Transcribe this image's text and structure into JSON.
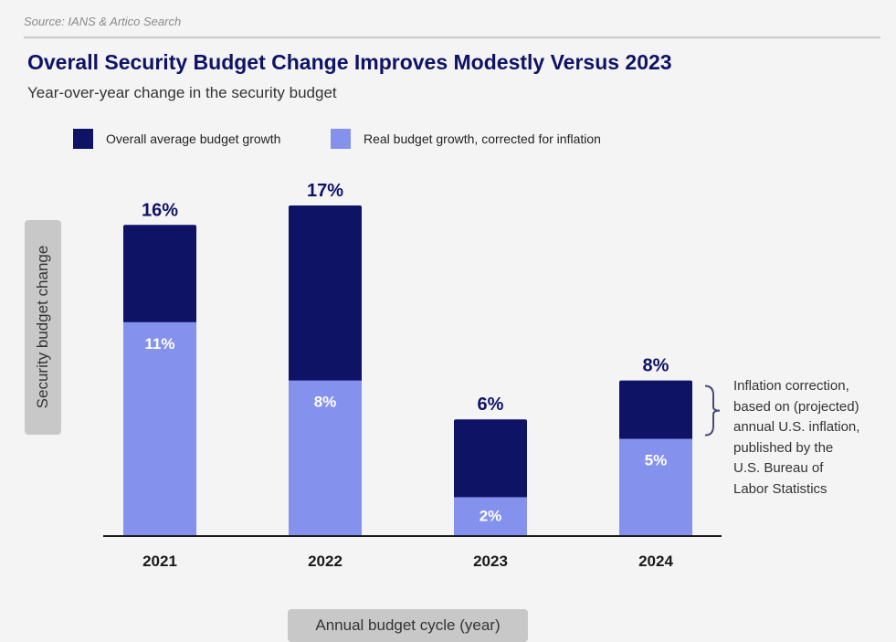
{
  "source": "Source: IANS & Artico Search",
  "colors": {
    "overall": "#0f1366",
    "real": "#8592ed",
    "axis": "#1a1a1a",
    "bracket": "#4a4a7a"
  },
  "chart_data": {
    "type": "bar",
    "title": "Overall Security Budget Change Improves Modestly Versus 2023",
    "subtitle": "Year-over-year change in the security budget",
    "xlabel": "Annual budget cycle (year)",
    "ylabel": "Security budget change",
    "categories": [
      "2021",
      "2022",
      "2023",
      "2024"
    ],
    "series": [
      {
        "name": "Overall average budget growth",
        "values": [
          16,
          17,
          6,
          8
        ],
        "labels": [
          "16%",
          "17%",
          "6%",
          "8%"
        ]
      },
      {
        "name": "Real budget growth, corrected for inflation",
        "values": [
          11,
          8,
          2,
          5
        ],
        "labels": [
          "11%",
          "8%",
          "2%",
          "5%"
        ]
      }
    ],
    "ylim": [
      0,
      17
    ],
    "grid": false,
    "legend": "top-left"
  },
  "annotation": {
    "lines": [
      "Inflation correction,",
      "based on (projected)",
      "annual U.S. inflation,",
      "published by the",
      "U.S. Bureau of",
      "Labor Statistics"
    ]
  }
}
